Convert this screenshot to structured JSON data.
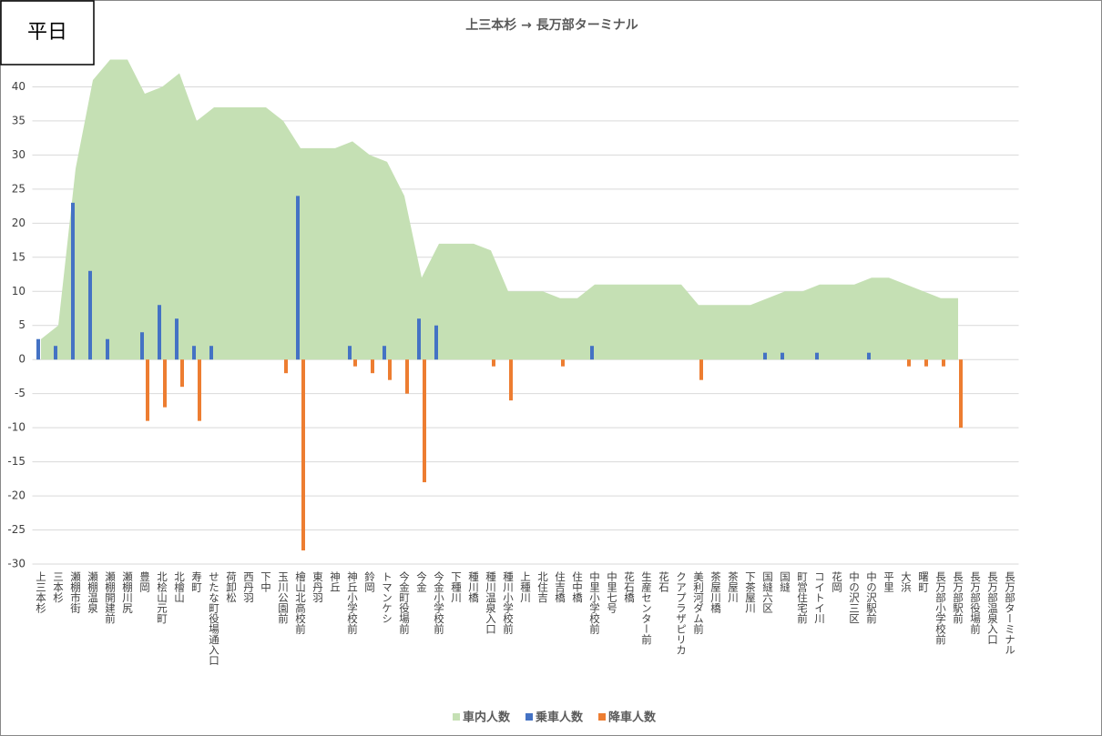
{
  "chart_data": {
    "type": "area_bar",
    "label": "平日",
    "title": "上三本杉 → 長万部ターミナル",
    "categories": [
      "上三本杉",
      "三本杉",
      "瀬棚市街",
      "瀬棚温泉",
      "瀬棚開建前",
      "瀬棚川尻",
      "豊岡",
      "北桧山元町",
      "北檜山",
      "寿町",
      "せたな町役場通入口",
      "荷卸松",
      "西丹羽",
      "下中",
      "玉川公園前",
      "檜山北高校前",
      "東丹羽",
      "神丘",
      "神丘小学校前",
      "鈴岡",
      "トマンケシ",
      "今金町役場前",
      "今金",
      "今金小学校前",
      "下種川",
      "種川橋",
      "種川温泉入口",
      "種川小学校前",
      "上種川",
      "北住吉",
      "住吉橋",
      "住中橋",
      "中里小学校前",
      "中里七号",
      "花石橋",
      "生産センター前",
      "花石",
      "クアプラザピリカ",
      "美利河ダム前",
      "茶屋川橋",
      "茶屋川",
      "下茶屋川",
      "国縫六区",
      "国縫",
      "町営住宅前",
      "コイトイ川",
      "花岡",
      "中の沢三区",
      "中の沢駅前",
      "平里",
      "大浜",
      "曙町",
      "長万部小学校前",
      "長万部駅前",
      "長万部役場前",
      "長万部温泉入口",
      "長万部ターミナル"
    ],
    "series": [
      {
        "name": "車内人数",
        "kind": "area",
        "color": "#c5e0b4",
        "values": [
          3,
          5,
          28,
          41,
          44,
          44,
          39,
          40,
          42,
          35,
          37,
          37,
          37,
          37,
          35,
          31,
          31,
          31,
          32,
          30,
          29,
          24,
          12,
          17,
          17,
          17,
          16,
          10,
          10,
          10,
          9,
          9,
          11,
          11,
          11,
          11,
          11,
          11,
          8,
          8,
          8,
          8,
          9,
          10,
          10,
          11,
          11,
          11,
          12,
          12,
          11,
          10,
          9,
          9,
          null,
          null,
          null
        ]
      },
      {
        "name": "乗車人数",
        "kind": "bar",
        "color": "#4472c4",
        "values": [
          3,
          2,
          23,
          13,
          3,
          null,
          4,
          8,
          6,
          2,
          2,
          null,
          null,
          null,
          null,
          24,
          null,
          null,
          2,
          null,
          2,
          null,
          6,
          5,
          null,
          null,
          null,
          null,
          null,
          null,
          null,
          null,
          2,
          null,
          null,
          null,
          null,
          null,
          null,
          null,
          null,
          null,
          1,
          1,
          null,
          1,
          null,
          null,
          1,
          null,
          null,
          null,
          null,
          null,
          null,
          null,
          null
        ]
      },
      {
        "name": "降車人数",
        "kind": "bar",
        "color": "#ed7d31",
        "values": [
          null,
          null,
          null,
          null,
          null,
          null,
          -9,
          -7,
          -4,
          -9,
          null,
          null,
          null,
          null,
          -2,
          -28,
          null,
          null,
          -1,
          -2,
          -3,
          -5,
          -18,
          null,
          null,
          null,
          -1,
          -6,
          null,
          null,
          -1,
          null,
          null,
          null,
          null,
          null,
          null,
          null,
          -3,
          null,
          null,
          null,
          null,
          null,
          null,
          null,
          null,
          null,
          null,
          null,
          -1,
          -1,
          -1,
          -10,
          null,
          null,
          null
        ]
      }
    ],
    "ylim": [
      -30,
      45
    ],
    "yticks": [
      -30,
      -25,
      -20,
      -15,
      -10,
      -5,
      0,
      5,
      10,
      15,
      20,
      25,
      30,
      35,
      40
    ],
    "grid": true
  }
}
